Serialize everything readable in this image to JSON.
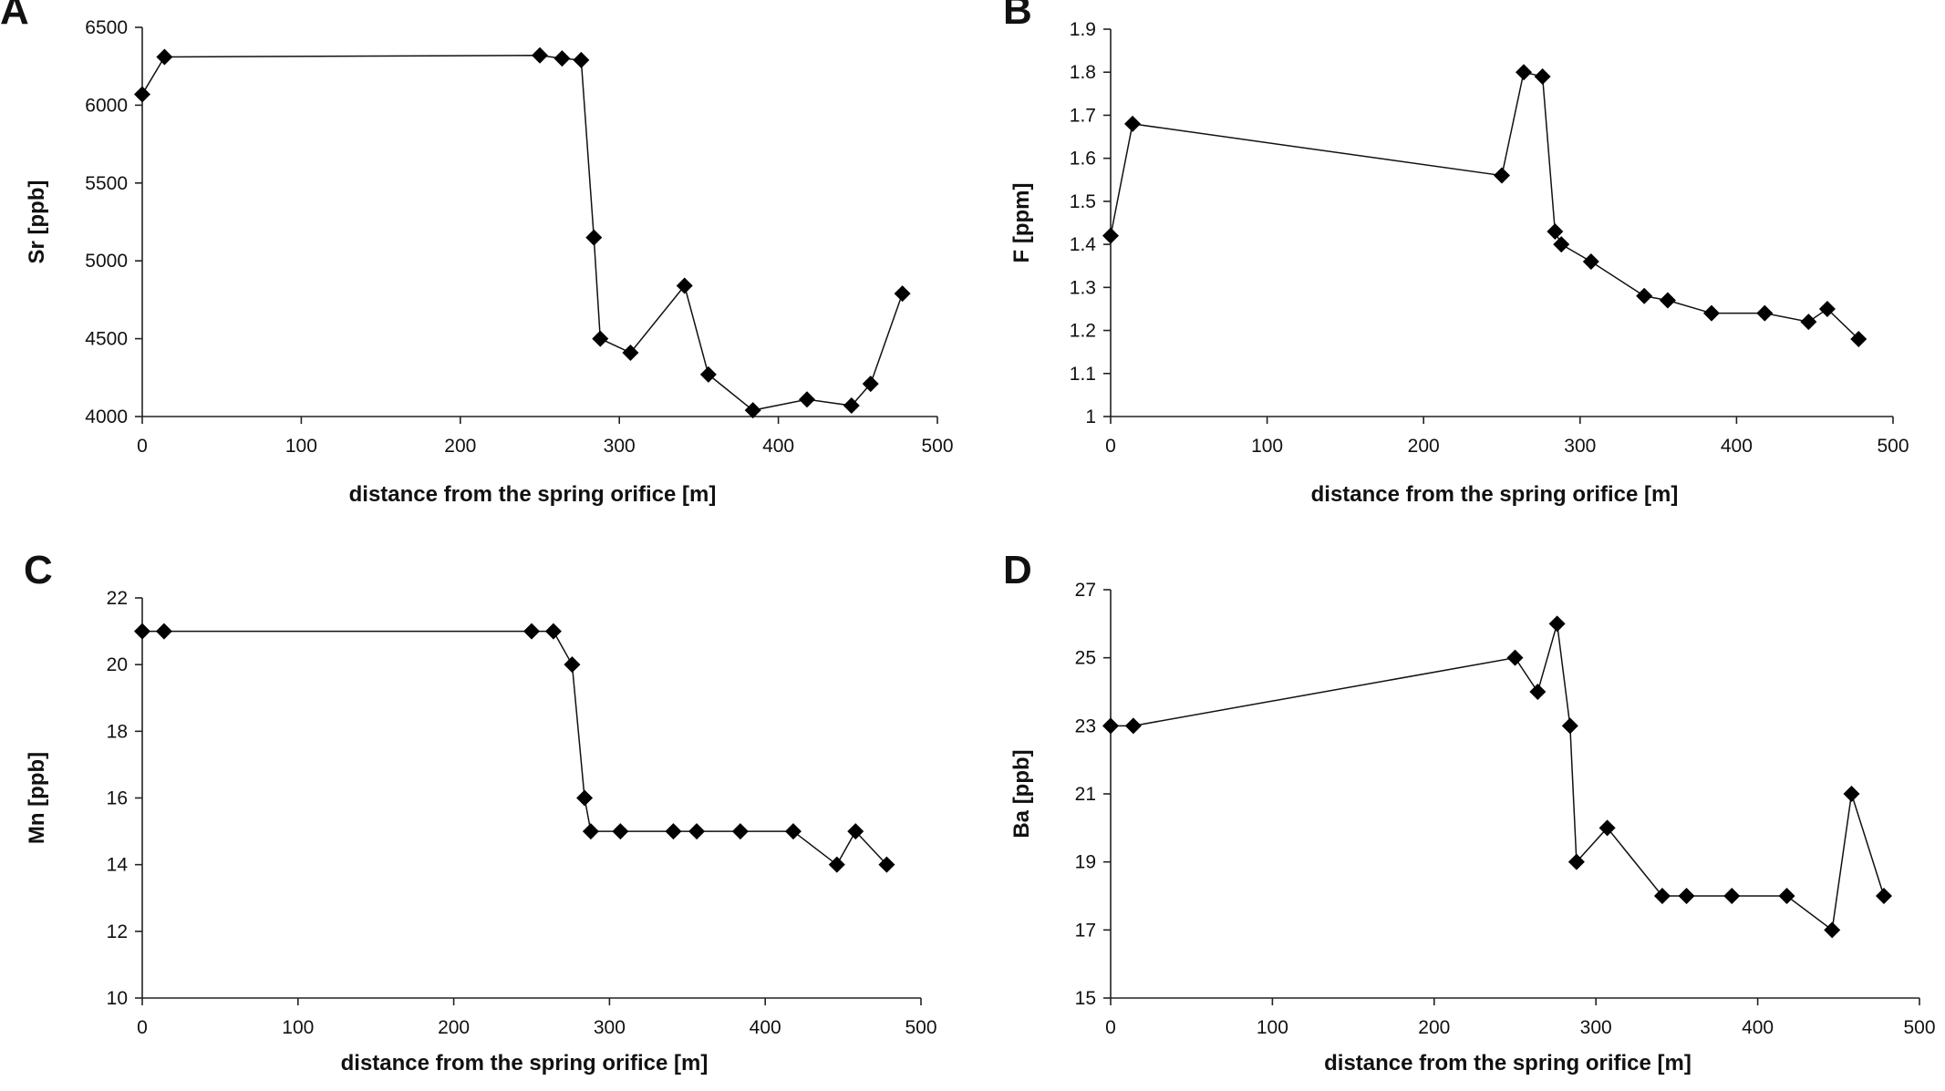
{
  "chart_data": [
    {
      "type": "line",
      "panel_label": "A",
      "xlabel": "distance from the spring orifice [m]",
      "ylabel": "Sr [ppb]",
      "xlim": [
        0,
        500
      ],
      "ylim": [
        4000,
        6500
      ],
      "xticks": [
        0,
        100,
        200,
        300,
        400,
        500
      ],
      "yticks": [
        4000,
        4500,
        5000,
        5500,
        6000,
        6500
      ],
      "marker": "diamond",
      "grid": false,
      "series": [
        {
          "x": [
            0,
            14,
            250,
            264,
            276,
            284,
            288,
            307,
            341,
            356,
            384,
            418,
            446,
            458,
            478
          ],
          "y": [
            6070,
            6310,
            6320,
            6300,
            6290,
            5150,
            4500,
            4410,
            4840,
            4270,
            4040,
            4110,
            4070,
            4210,
            4790
          ]
        }
      ]
    },
    {
      "type": "line",
      "panel_label": "B",
      "xlabel": "distance from the spring orifice [m]",
      "ylabel": "F [ppm]",
      "xlim": [
        0,
        500
      ],
      "ylim": [
        1,
        1.9
      ],
      "xticks": [
        0,
        100,
        200,
        300,
        400,
        500
      ],
      "yticks": [
        1,
        1.1,
        1.2,
        1.3,
        1.4,
        1.5,
        1.6,
        1.7,
        1.8,
        1.9
      ],
      "marker": "diamond",
      "grid": false,
      "series": [
        {
          "x": [
            0,
            14,
            250,
            264,
            276,
            284,
            288,
            307,
            341,
            356,
            384,
            418,
            446,
            458,
            478
          ],
          "y": [
            1.42,
            1.68,
            1.56,
            1.8,
            1.79,
            1.43,
            1.4,
            1.36,
            1.28,
            1.27,
            1.24,
            1.24,
            1.22,
            1.25,
            1.18
          ]
        }
      ]
    },
    {
      "type": "line",
      "panel_label": "C",
      "xlabel": "distance from the spring orifice [m]",
      "ylabel": "Mn [ppb]",
      "xlim": [
        0,
        500
      ],
      "ylim": [
        10,
        22
      ],
      "xticks": [
        0,
        100,
        200,
        300,
        400,
        500
      ],
      "yticks": [
        10,
        12,
        14,
        16,
        18,
        20,
        22
      ],
      "marker": "diamond",
      "grid": false,
      "series": [
        {
          "x": [
            0,
            14,
            250,
            264,
            276,
            284,
            288,
            307,
            341,
            356,
            384,
            418,
            446,
            458,
            478
          ],
          "y": [
            21,
            21,
            21,
            21,
            20,
            16,
            15,
            15,
            15,
            15,
            15,
            15,
            14,
            15,
            14
          ]
        }
      ]
    },
    {
      "type": "line",
      "panel_label": "D",
      "xlabel": "distance from the spring orifice [m]",
      "ylabel": "Ba [ppb]",
      "xlim": [
        0,
        500
      ],
      "ylim": [
        15,
        27
      ],
      "xticks": [
        0,
        100,
        200,
        300,
        400,
        500
      ],
      "yticks": [
        15,
        17,
        19,
        21,
        23,
        25,
        27
      ],
      "marker": "diamond",
      "grid": false,
      "series": [
        {
          "x": [
            0,
            14,
            250,
            264,
            276,
            284,
            288,
            307,
            341,
            356,
            384,
            418,
            446,
            458,
            478
          ],
          "y": [
            23,
            23,
            25,
            24,
            26,
            23,
            19,
            20,
            18,
            18,
            18,
            18,
            17,
            21,
            18
          ]
        }
      ]
    }
  ]
}
